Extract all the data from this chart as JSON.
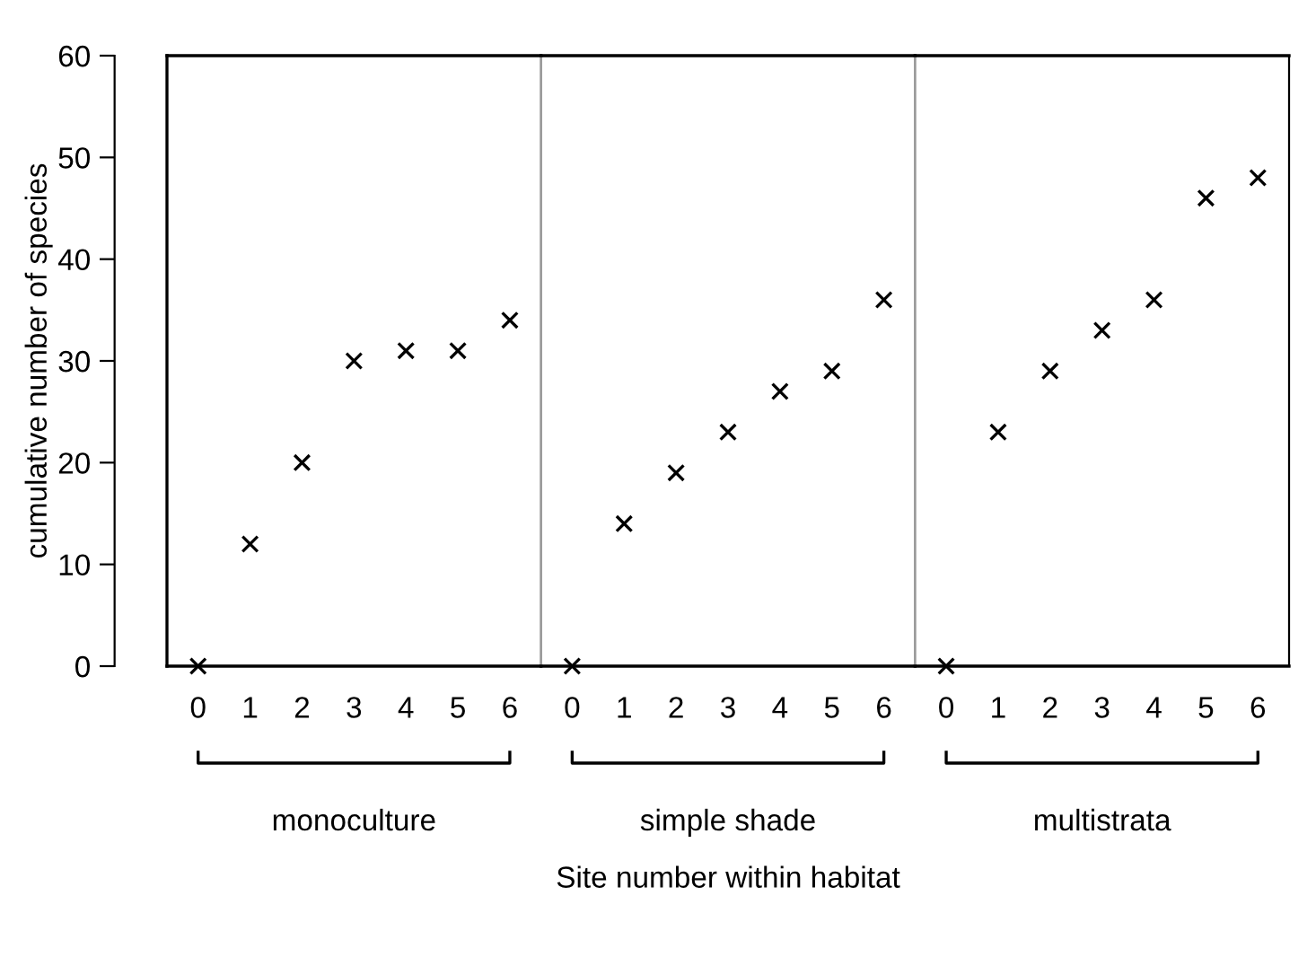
{
  "chart_data": [
    {
      "type": "scatter",
      "xlabel": "monoculture",
      "ylabel": "cumulative number of species",
      "categories": [
        "0",
        "1",
        "2",
        "3",
        "4",
        "5",
        "6"
      ],
      "values": [
        0,
        12,
        20,
        30,
        31,
        31,
        34
      ],
      "color": "#000000",
      "marker": "cross",
      "ylim": [
        0,
        60
      ],
      "yticks": [
        0,
        10,
        20,
        30,
        40,
        50,
        60
      ],
      "grid": false
    },
    {
      "type": "scatter",
      "xlabel": "simple shade",
      "categories": [
        "0",
        "1",
        "2",
        "3",
        "4",
        "5",
        "6"
      ],
      "values": [
        0,
        14,
        19,
        23,
        27,
        29,
        36
      ],
      "color": "#000000",
      "marker": "cross",
      "ylim": [
        0,
        60
      ],
      "tick_labels": "x",
      "grid": false,
      "annotations": [
        "Site number within habitat"
      ]
    },
    {
      "type": "scatter",
      "xlabel": "multistrata",
      "categories": [
        "0",
        "1",
        "2",
        "3",
        "4",
        "5",
        "6"
      ],
      "values": [
        0,
        23,
        29,
        33,
        36,
        46,
        48
      ],
      "color": "#000000",
      "marker": "cross",
      "ylim": [
        0,
        60
      ],
      "tick_labels": "x",
      "grid": false
    }
  ]
}
